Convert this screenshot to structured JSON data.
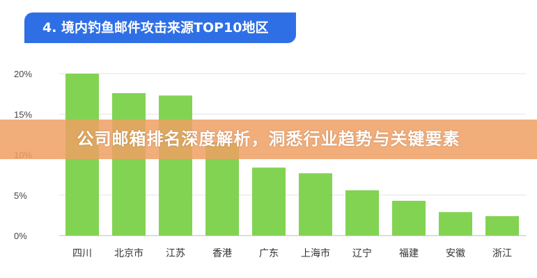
{
  "header": {
    "title": "4. 境内钓鱼邮件攻击来源TOP10地区"
  },
  "banner": {
    "text": "公司邮箱排名深度解析，洞悉行业趋势与关键要素"
  },
  "colors": {
    "bar": "#82d352",
    "title_bg": "#2f6fe6",
    "banner_bg": "#eea064"
  },
  "chart_data": {
    "type": "bar",
    "title": "4. 境内钓鱼邮件攻击来源TOP10地区",
    "categories": [
      "四川",
      "北京市",
      "江苏",
      "香港",
      "广东",
      "上海市",
      "辽宁",
      "福建",
      "安徽",
      "浙江"
    ],
    "values": [
      20.0,
      17.6,
      17.3,
      11.5,
      8.4,
      7.7,
      5.6,
      4.3,
      2.9,
      2.4
    ],
    "unit": "%",
    "yticks": [
      "0%",
      "5%",
      "10%",
      "15%",
      "20%"
    ],
    "ylim": [
      0,
      20
    ],
    "grid": true,
    "xlabel": "",
    "ylabel": ""
  }
}
